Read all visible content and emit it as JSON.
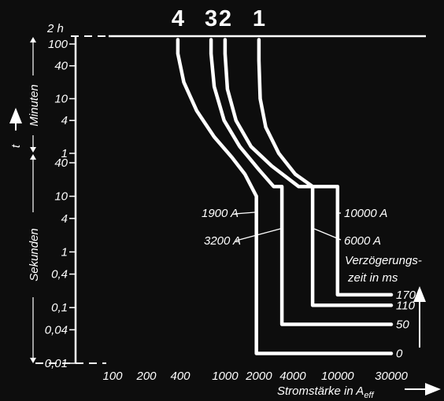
{
  "chart_data": {
    "type": "line",
    "title": "",
    "xlabel": "Stromstärke in A",
    "xlabel_sub": "eff",
    "x_scale": "log",
    "y_scale": "log",
    "y_axis_variable": "t",
    "xlim": [
      100,
      30000
    ],
    "x_ticks": [
      "100",
      "200",
      "400",
      "1000",
      "2000",
      "4000",
      "10000",
      "30000"
    ],
    "y_ticks_minutes": [
      "100",
      "40",
      "10",
      "4",
      "1"
    ],
    "y_ticks_seconds": [
      "40",
      "10",
      "4",
      "1",
      "0,4",
      "0,1",
      "0,04",
      "0,01"
    ],
    "y_top_label": "2 h",
    "y_group_minutes": "Minuten",
    "y_group_seconds": "Sekunden",
    "curve_labels": [
      "4",
      "3",
      "2",
      "1"
    ],
    "delay_header_line1": "Verzögerungs-",
    "delay_header_line2": "zeit in ms",
    "series": [
      {
        "name": "1",
        "delay": "170",
        "instantaneous_trip": "10000 A",
        "points": [
          [
            2000,
            7200
          ],
          [
            2000,
            3000
          ],
          [
            2050,
            600
          ],
          [
            2300,
            180
          ],
          [
            3000,
            60
          ],
          [
            4200,
            25
          ],
          [
            6000,
            15
          ],
          [
            10000,
            15
          ],
          [
            10000,
            0.17
          ],
          [
            30000,
            0.17
          ]
        ]
      },
      {
        "name": "2",
        "delay": "110",
        "instantaneous_trip": "6000 A",
        "points": [
          [
            1000,
            7200
          ],
          [
            1000,
            4000
          ],
          [
            1050,
            900
          ],
          [
            1250,
            240
          ],
          [
            1700,
            80
          ],
          [
            2600,
            35
          ],
          [
            4500,
            15
          ],
          [
            6000,
            15
          ],
          [
            6000,
            0.11
          ],
          [
            30000,
            0.11
          ]
        ]
      },
      {
        "name": "3",
        "delay": "50",
        "instantaneous_trip": "3200 A",
        "points": [
          [
            750,
            7200
          ],
          [
            750,
            4000
          ],
          [
            800,
            1000
          ],
          [
            980,
            240
          ],
          [
            1350,
            80
          ],
          [
            2000,
            30
          ],
          [
            2700,
            15
          ],
          [
            3200,
            15
          ],
          [
            3200,
            0.05
          ],
          [
            30000,
            0.05
          ]
        ]
      },
      {
        "name": "4",
        "delay": "0",
        "instantaneous_trip": "1900 A",
        "points": [
          [
            380,
            7200
          ],
          [
            380,
            4000
          ],
          [
            430,
            1200
          ],
          [
            560,
            360
          ],
          [
            800,
            120
          ],
          [
            1150,
            50
          ],
          [
            1500,
            25
          ],
          [
            1900,
            10
          ],
          [
            1900,
            0.015
          ],
          [
            30000,
            0.015
          ]
        ]
      }
    ]
  }
}
